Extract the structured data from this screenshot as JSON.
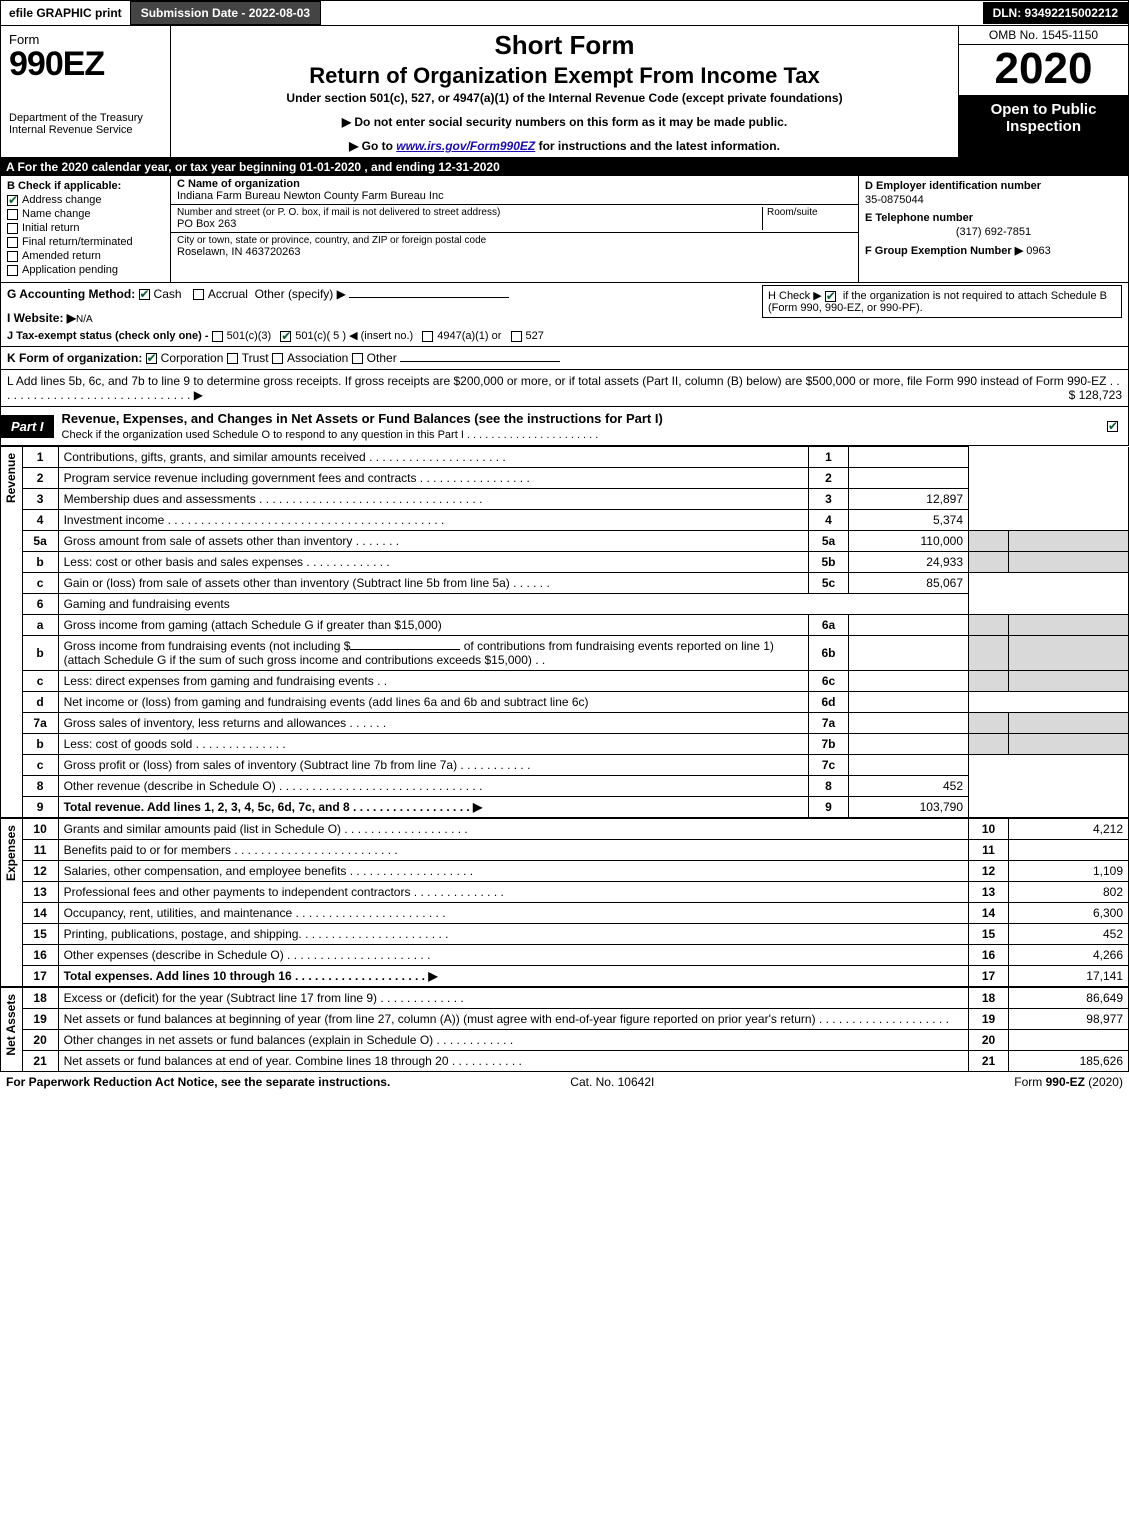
{
  "topbar": {
    "efile": "efile GRAPHIC print",
    "sub_label": "Submission Date - 2022-08-03",
    "dln": "DLN: 93492215002212"
  },
  "hdr": {
    "form_word": "Form",
    "form_no": "990EZ",
    "dept": "Department of the Treasury\nInternal Revenue Service",
    "short": "Short Form",
    "title2": "Return of Organization Exempt From Income Tax",
    "sub": "Under section 501(c), 527, or 4947(a)(1) of the Internal Revenue Code (except private foundations)",
    "note1": "▶ Do not enter social security numbers on this form as it may be made public.",
    "note2_pre": "▶ Go to ",
    "note2_link": "www.irs.gov/Form990EZ",
    "note2_post": " for instructions and the latest information.",
    "omb": "OMB No. 1545-1150",
    "year": "2020",
    "inspection": "Open to Public Inspection"
  },
  "line_a": "A  For the 2020 calendar year, or tax year beginning 01-01-2020 , and ending 12-31-2020",
  "col_b": {
    "hdr": "B  Check if applicable:",
    "items": [
      "Address change",
      "Name change",
      "Initial return",
      "Final return/terminated",
      "Amended return",
      "Application pending"
    ],
    "checked": [
      true,
      false,
      false,
      false,
      false,
      false
    ]
  },
  "col_c": {
    "name_lbl": "C Name of organization",
    "name": "Indiana Farm Bureau Newton County Farm Bureau Inc",
    "addr_lbl": "Number and street (or P. O. box, if mail is not delivered to street address)",
    "room_lbl": "Room/suite",
    "addr": "PO Box 263",
    "city_lbl": "City or town, state or province, country, and ZIP or foreign postal code",
    "city": "Roselawn, IN  463720263"
  },
  "col_d": {
    "ein_lbl": "D Employer identification number",
    "ein": "35-0875044",
    "tel_lbl": "E Telephone number",
    "tel": "(317) 692-7851",
    "grp_lbl": "F Group Exemption Number  ▶",
    "grp": "0963"
  },
  "g": {
    "label": "G Accounting Method:",
    "cash": "Cash",
    "accrual": "Accrual",
    "other": "Other (specify) ▶"
  },
  "h": {
    "text": "H  Check ▶ ",
    "text2": " if the organization is not required to attach Schedule B (Form 990, 990-EZ, or 990-PF)."
  },
  "i": {
    "label": "I Website: ▶",
    "val": "N/A"
  },
  "j": {
    "label": "J Tax-exempt status (check only one) -",
    "o1": "501(c)(3)",
    "o2": "501(c)( 5 ) ◀ (insert no.)",
    "o3": "4947(a)(1) or",
    "o4": "527"
  },
  "k": {
    "label": "K Form of organization:",
    "opts": [
      "Corporation",
      "Trust",
      "Association",
      "Other"
    ],
    "checked": [
      true,
      false,
      false,
      false
    ]
  },
  "l": {
    "text": "L Add lines 5b, 6c, and 7b to line 9 to determine gross receipts. If gross receipts are $200,000 or more, or if total assets (Part II, column (B) below) are $500,000 or more, file Form 990 instead of Form 990-EZ  . . . . . . . . . . . . . . . . . . . . . . . . . . . . . .  ▶",
    "amt": "$ 128,723"
  },
  "part1": {
    "tag": "Part I",
    "title": "Revenue, Expenses, and Changes in Net Assets or Fund Balances (see the instructions for Part I)",
    "sub": "Check if the organization used Schedule O to respond to any question in this Part I  . . . . . . . . . . . . . . . . . . . . . ."
  },
  "revenue_label": "Revenue",
  "expenses_label": "Expenses",
  "netassets_label": "Net Assets",
  "lines": [
    {
      "n": "1",
      "d": "Contributions, gifts, grants, and similar amounts received . . . . . . . . . . . . . . . . . . . . .",
      "c": "1",
      "v": ""
    },
    {
      "n": "2",
      "d": "Program service revenue including government fees and contracts . . . . . . . . . . . . . . . . .",
      "c": "2",
      "v": ""
    },
    {
      "n": "3",
      "d": "Membership dues and assessments . . . . . . . . . . . . . . . . . . . . . . . . . . . . . . . . . .",
      "c": "3",
      "v": "12,897"
    },
    {
      "n": "4",
      "d": "Investment income . . . . . . . . . . . . . . . . . . . . . . . . . . . . . . . . . . . . . . . . . .",
      "c": "4",
      "v": "5,374"
    }
  ],
  "l5a": {
    "n": "5a",
    "d": "Gross amount from sale of assets other than inventory . . . . . . .",
    "sn": "5a",
    "sv": "110,000"
  },
  "l5b": {
    "n": "b",
    "d": "Less: cost or other basis and sales expenses . . . . . . . . . . . . .",
    "sn": "5b",
    "sv": "24,933"
  },
  "l5c": {
    "n": "c",
    "d": "Gain or (loss) from sale of assets other than inventory (Subtract line 5b from line 5a)  . . . . . .",
    "c": "5c",
    "v": "85,067"
  },
  "l6": {
    "n": "6",
    "d": "Gaming and fundraising events"
  },
  "l6a": {
    "n": "a",
    "d": "Gross income from gaming (attach Schedule G if greater than $15,000)",
    "sn": "6a",
    "sv": ""
  },
  "l6b": {
    "n": "b",
    "d1": "Gross income from fundraising events (not including $",
    "d2": " of contributions from fundraising events reported on line 1) (attach Schedule G if the sum of such gross income and contributions exceeds $15,000)   .  .",
    "sn": "6b",
    "sv": ""
  },
  "l6c": {
    "n": "c",
    "d": "Less: direct expenses from gaming and fundraising events   .  .",
    "sn": "6c",
    "sv": ""
  },
  "l6d": {
    "n": "d",
    "d": "Net income or (loss) from gaming and fundraising events (add lines 6a and 6b and subtract line 6c)",
    "c": "6d",
    "v": ""
  },
  "l7a": {
    "n": "7a",
    "d": "Gross sales of inventory, less returns and allowances  . . . . . .",
    "sn": "7a",
    "sv": ""
  },
  "l7b": {
    "n": "b",
    "d": "Less: cost of goods sold      .  .  .  .  .  .  .  .  .  .  .  .  .  .",
    "sn": "7b",
    "sv": ""
  },
  "l7c": {
    "n": "c",
    "d": "Gross profit or (loss) from sales of inventory (Subtract line 7b from line 7a)  . . . . . . . . . . .",
    "c": "7c",
    "v": ""
  },
  "l8": {
    "n": "8",
    "d": "Other revenue (describe in Schedule O) . . . . . . . . . . . . . . . . . . . . . . . . . . . . . . .",
    "c": "8",
    "v": "452"
  },
  "l9": {
    "n": "9",
    "d": "Total revenue. Add lines 1, 2, 3, 4, 5c, 6d, 7c, and 8   . . . . . . . . . . . . . . . . . .    ▶",
    "c": "9",
    "v": "103,790",
    "bold": true
  },
  "exp": [
    {
      "n": "10",
      "d": "Grants and similar amounts paid (list in Schedule O) .  .  .  .  .  .  .  .  .  .  .  .  .  .  .  .  .  .  .",
      "c": "10",
      "v": "4,212"
    },
    {
      "n": "11",
      "d": "Benefits paid to or for members     .  .  .  .  .  .  .  .  .  .  .  .  .  .  .  .  .  .  .  .  .  .  .  .  .",
      "c": "11",
      "v": ""
    },
    {
      "n": "12",
      "d": "Salaries, other compensation, and employee benefits .  .  .  .  .  .  .  .  .  .  .  .  .  .  .  .  .  .  .",
      "c": "12",
      "v": "1,109"
    },
    {
      "n": "13",
      "d": "Professional fees and other payments to independent contractors .  .  .  .  .  .  .  .  .  .  .  .  .  .",
      "c": "13",
      "v": "802"
    },
    {
      "n": "14",
      "d": "Occupancy, rent, utilities, and maintenance .  .  .  .  .  .  .  .  .  .  .  .  .  .  .  .  .  .  .  .  .  .  .",
      "c": "14",
      "v": "6,300"
    },
    {
      "n": "15",
      "d": "Printing, publications, postage, and shipping.  .  .  .  .  .  .  .  .  .  .  .  .  .  .  .  .  .  .  .  .  .  .",
      "c": "15",
      "v": "452"
    },
    {
      "n": "16",
      "d": "Other expenses (describe in Schedule O)     .  .  .  .  .  .  .  .  .  .  .  .  .  .  .  .  .  .  .  .  .  .",
      "c": "16",
      "v": "4,266"
    },
    {
      "n": "17",
      "d": "Total expenses. Add lines 10 through 16     .  .  .  .  .  .  .  .  .  .  .  .  .  .  .  .  .  .  .  .    ▶",
      "c": "17",
      "v": "17,141",
      "bold": true
    }
  ],
  "na": [
    {
      "n": "18",
      "d": "Excess or (deficit) for the year (Subtract line 17 from line 9)      .  .  .  .  .  .  .  .  .  .  .  .  .",
      "c": "18",
      "v": "86,649"
    },
    {
      "n": "19",
      "d": "Net assets or fund balances at beginning of year (from line 27, column (A)) (must agree with end-of-year figure reported on prior year's return) .  .  .  .  .  .  .  .  .  .  .  .  .  .  .  .  .  .  .  .",
      "c": "19",
      "v": "98,977"
    },
    {
      "n": "20",
      "d": "Other changes in net assets or fund balances (explain in Schedule O) .  .  .  .  .  .  .  .  .  .  .  .",
      "c": "20",
      "v": ""
    },
    {
      "n": "21",
      "d": "Net assets or fund balances at end of year. Combine lines 18 through 20 .  .  .  .  .  .  .  .  .  .  .",
      "c": "21",
      "v": "185,626"
    }
  ],
  "footer": {
    "left": "For Paperwork Reduction Act Notice, see the separate instructions.",
    "mid": "Cat. No. 10642I",
    "right": "Form 990-EZ (2020)"
  }
}
